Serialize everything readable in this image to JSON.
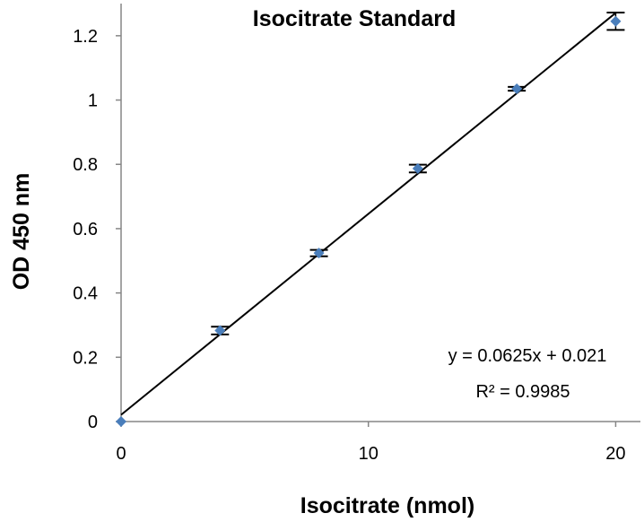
{
  "chart_data": {
    "type": "scatter",
    "title": "Isocitrate Standard",
    "xlabel": "Isocitrate (nmol)",
    "ylabel": "OD 450 nm",
    "xlim": [
      0,
      21
    ],
    "ylim": [
      0,
      1.3
    ],
    "x_ticks": [
      0,
      10,
      20
    ],
    "x_tick_labels": [
      "0",
      "10",
      "20"
    ],
    "y_ticks": [
      0,
      0.2,
      0.4,
      0.6,
      0.8,
      1.0,
      1.2
    ],
    "y_tick_labels": [
      "0",
      "0.2",
      "0.4",
      "0.6",
      "0.8",
      "1",
      "1.2"
    ],
    "grid": false,
    "legend": "none",
    "series": [
      {
        "points": [
          {
            "x": 0,
            "y": 0.0,
            "err": 0.0
          },
          {
            "x": 4,
            "y": 0.283,
            "err": 0.012
          },
          {
            "x": 8,
            "y": 0.524,
            "err": 0.01
          },
          {
            "x": 12,
            "y": 0.787,
            "err": 0.012
          },
          {
            "x": 16,
            "y": 1.035,
            "err": 0.006
          },
          {
            "x": 20,
            "y": 1.245,
            "err": 0.027
          }
        ],
        "color": "#4a7ebb"
      }
    ],
    "trendline": {
      "slope": 0.0625,
      "intercept": 0.021,
      "x_range": [
        0,
        20.02
      ],
      "equation": "y = 0.0625x + 0.021",
      "r_squared": "R² = 0.9985"
    }
  }
}
